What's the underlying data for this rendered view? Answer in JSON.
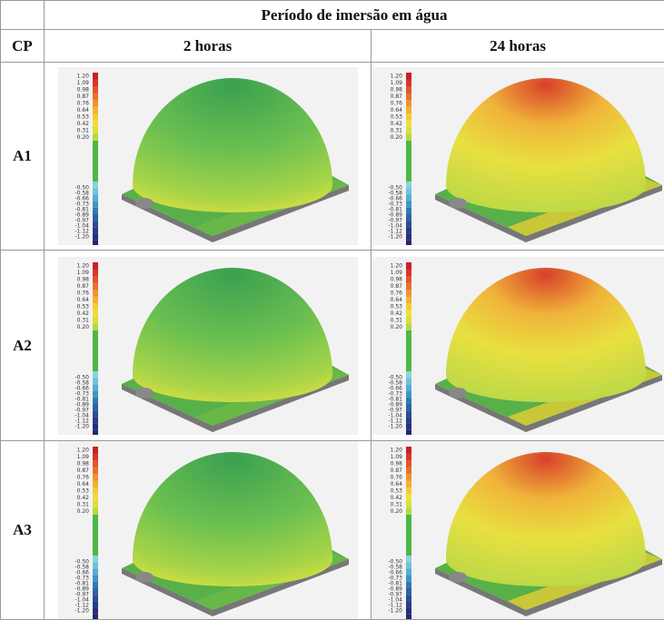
{
  "header": {
    "title": "Período de imersão em água",
    "row_label": "CP",
    "columns": [
      "2 horas",
      "24 horas"
    ]
  },
  "rows": [
    "A1",
    "A2",
    "A3"
  ],
  "scale": {
    "labels": [
      "1.20",
      "1.09",
      "0.98",
      "0.87",
      "0.76",
      "0.64",
      "0.53",
      "0.42",
      "0.31",
      "0.20",
      "-0.50",
      "-0.58",
      "-0.66",
      "-0.73",
      "-0.81",
      "-0.89",
      "-0.97",
      "-1.04",
      "-1.12",
      "-1.20"
    ]
  }
}
